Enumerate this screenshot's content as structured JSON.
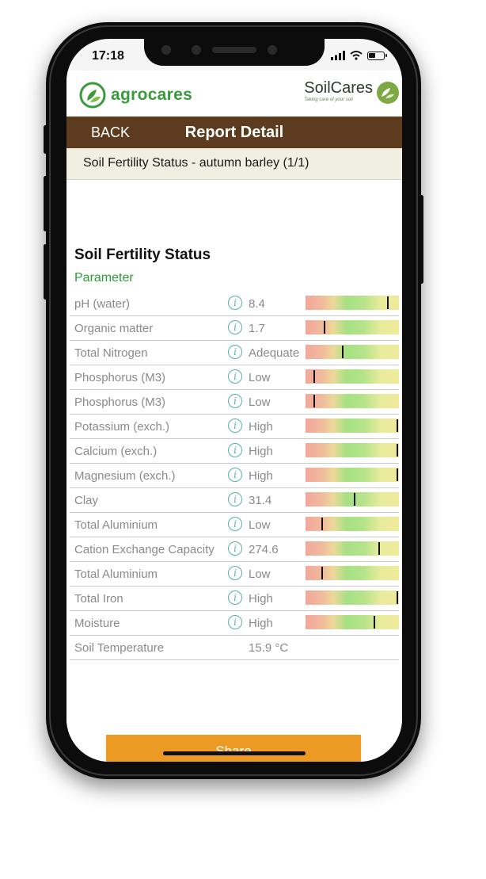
{
  "status_bar": {
    "time": "17:18"
  },
  "brand": {
    "left_logo": "agrocares",
    "right_logo": "SoilCares",
    "right_tagline": "Taking care of your soil"
  },
  "nav": {
    "back_label": "BACK",
    "title": "Report Detail"
  },
  "report": {
    "subtitle": "Soil Fertility Status - autumn barley (1/1)"
  },
  "section": {
    "title": "Soil Fertility Status",
    "column_header": "Parameter"
  },
  "parameters": [
    {
      "name": "pH (water)",
      "value": "8.4",
      "info_icon": true,
      "gauge_level": 0.89
    },
    {
      "name": "Organic matter",
      "value": "1.7",
      "info_icon": true,
      "gauge_level": 0.2
    },
    {
      "name": "Total Nitrogen",
      "value": "Adequate",
      "info_icon": true,
      "gauge_level": 0.4
    },
    {
      "name": "Phosphorus (M3)",
      "value": "Low",
      "info_icon": true,
      "gauge_level": 0.09
    },
    {
      "name": "Phosphorus (M3)",
      "value": "Low",
      "info_icon": true,
      "gauge_level": 0.09
    },
    {
      "name": "Potassium (exch.)",
      "value": "High",
      "info_icon": true,
      "gauge_level": 0.99
    },
    {
      "name": "Calcium (exch.)",
      "value": "High",
      "info_icon": true,
      "gauge_level": 0.99
    },
    {
      "name": "Magnesium (exch.)",
      "value": "High",
      "info_icon": true,
      "gauge_level": 0.99
    },
    {
      "name": "Clay",
      "value": "31.4",
      "info_icon": true,
      "gauge_level": 0.53
    },
    {
      "name": "Total Aluminium",
      "value": "Low",
      "info_icon": true,
      "gauge_level": 0.17
    },
    {
      "name": "Cation Exchange Capacity",
      "value": "274.6",
      "info_icon": true,
      "gauge_level": 0.79
    },
    {
      "name": "Total Aluminium",
      "value": "Low",
      "info_icon": true,
      "gauge_level": 0.17
    },
    {
      "name": "Total Iron",
      "value": "High",
      "info_icon": true,
      "gauge_level": 0.99
    },
    {
      "name": "Moisture",
      "value": "High",
      "info_icon": true,
      "gauge_level": 0.74
    },
    {
      "name": "Soil Temperature",
      "value": "15.9 °C",
      "info_icon": false,
      "gauge_level": null
    }
  ],
  "actions": {
    "share_label": "Share"
  },
  "colors": {
    "nav_bar": "#5c3b1f",
    "brand_green": "#3a9a3c",
    "share_button": "#ec9a24",
    "info_icon": "#56b59a",
    "subbar": "#efefe2"
  },
  "icons": [
    "signal-icon",
    "wifi-icon",
    "battery-icon",
    "agrocares-leaf-icon",
    "soilcares-leaf-icon",
    "info-icon"
  ]
}
